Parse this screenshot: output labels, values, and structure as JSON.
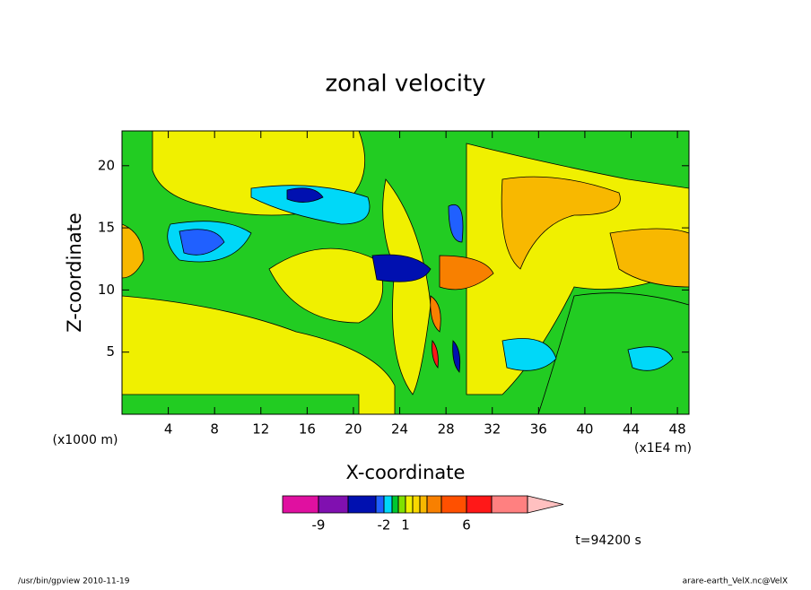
{
  "chart_data": {
    "type": "contour",
    "title": "zonal velocity",
    "x_label": "X-coordinate",
    "y_label": "Z-coordinate",
    "x_unit_left": "(x1000 m)",
    "x_unit_right": "(x1E4 m)",
    "xlim": [
      0,
      49
    ],
    "xticks": [
      4,
      8,
      12,
      16,
      20,
      24,
      28,
      32,
      36,
      40,
      44,
      48
    ],
    "ylim": [
      0,
      22.8
    ],
    "yticks": [
      5,
      10,
      15,
      20
    ],
    "colorbar": {
      "colors": [
        "#e010a0",
        "#8010b0",
        "#0010b0",
        "#2060ff",
        "#00d8f8",
        "#00c830",
        "#80e000",
        "#f0f000",
        "#f8d800",
        "#f8b800",
        "#f88000",
        "#ff5000",
        "#ff1818",
        "#ff8080",
        "#ffc0c0"
      ],
      "boundaries": [
        -9,
        -6,
        -3,
        -2,
        -1,
        0,
        1,
        2,
        3,
        4,
        5,
        6,
        9,
        12
      ],
      "ticks": [
        -9,
        -2,
        1,
        6
      ]
    },
    "time_label": "t=94200 s",
    "footer_left": "/usr/bin/gpview   2010-11-19",
    "footer_right": "arare-earth_VelX.nc@VelX"
  }
}
